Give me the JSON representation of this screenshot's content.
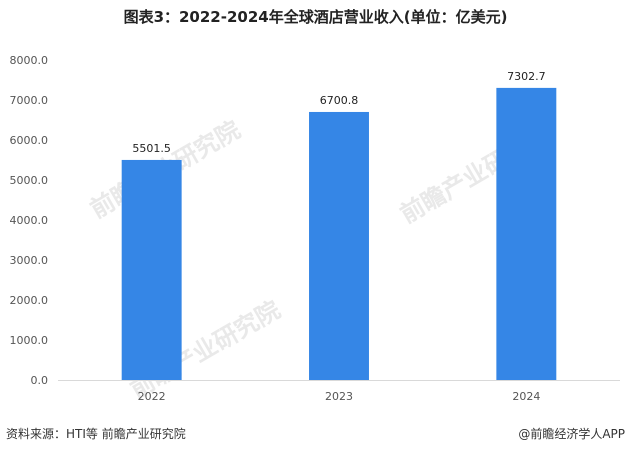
{
  "footer": {
    "source": "资料来源：HTI等 前瞻产业研究院",
    "brand": "@前瞻经济学人APP"
  },
  "watermark": {
    "text": "前瞻产业研究院"
  },
  "chart_data": {
    "type": "bar",
    "title": "图表3：2022-2024年全球酒店营业收入(单位：亿美元)",
    "categories": [
      "2022",
      "2023",
      "2024"
    ],
    "values": [
      5501.5,
      6700.8,
      7302.7
    ],
    "value_labels": [
      "5501.5",
      "6700.8",
      "7302.7"
    ],
    "yticks": [
      "0.0",
      "1000.0",
      "2000.0",
      "3000.0",
      "4000.0",
      "5000.0",
      "6000.0",
      "7000.0",
      "8000.0"
    ],
    "ylim": [
      0,
      8000
    ],
    "xlabel": "",
    "ylabel": "",
    "grid": false,
    "legend": "none",
    "bar_color": "#3586e6"
  }
}
